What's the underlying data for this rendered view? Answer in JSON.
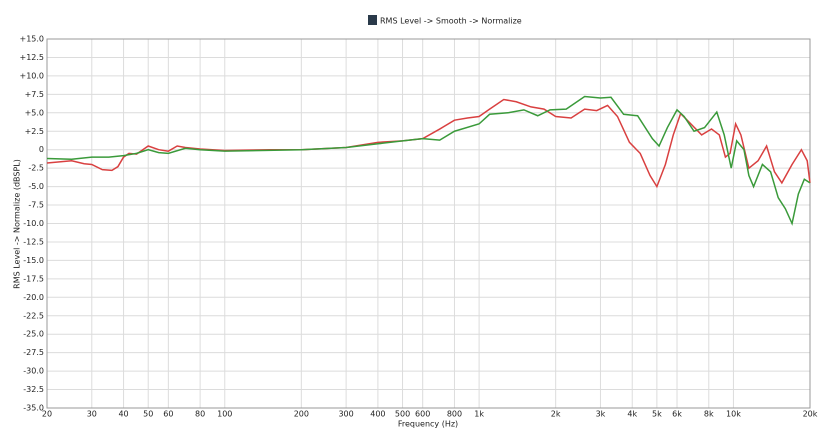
{
  "chart_data": {
    "type": "line",
    "title": "RMS Level -> Smooth -> Normalize",
    "x_label": "Frequency (Hz)",
    "y_label": "RMS Level -> Normalize (dBSPL)",
    "xscale": "log",
    "grid": true,
    "xlim": [
      20,
      20000
    ],
    "ylim": [
      -35,
      15
    ],
    "xticks": [
      20,
      30,
      40,
      50,
      60,
      80,
      100,
      200,
      300,
      400,
      500,
      600,
      800,
      {
        "value": 1000,
        "label": "1k"
      },
      {
        "value": 2000,
        "label": "2k"
      },
      {
        "value": 3000,
        "label": "3k"
      },
      {
        "value": 4000,
        "label": "4k"
      },
      {
        "value": 5000,
        "label": "5k"
      },
      {
        "value": 6000,
        "label": "6k"
      },
      {
        "value": 8000,
        "label": "8k"
      },
      {
        "value": 10000,
        "label": "10k"
      },
      {
        "value": 20000,
        "label": "20k"
      }
    ],
    "yticks": [
      {
        "value": 15,
        "label": "+15.0"
      },
      {
        "value": 12.5,
        "label": "+12.5"
      },
      {
        "value": 10,
        "label": "+10.0"
      },
      {
        "value": 7.5,
        "label": "+7.5"
      },
      {
        "value": 5,
        "label": "+5.0"
      },
      {
        "value": 2.5,
        "label": "+2.5"
      },
      0,
      {
        "value": -2.5,
        "label": "-2.5"
      },
      {
        "value": -5,
        "label": "-5.0"
      },
      {
        "value": -7.5,
        "label": "-7.5"
      },
      {
        "value": -10,
        "label": "-10.0"
      },
      {
        "value": -12.5,
        "label": "-12.5"
      },
      {
        "value": -15,
        "label": "-15.0"
      },
      {
        "value": -17.5,
        "label": "-17.5"
      },
      {
        "value": -20,
        "label": "-20.0"
      },
      {
        "value": -22.5,
        "label": "-22.5"
      },
      {
        "value": -25,
        "label": "-25.0"
      },
      {
        "value": -27.5,
        "label": "-27.5"
      },
      {
        "value": -30,
        "label": "-30.0"
      },
      {
        "value": -32.5,
        "label": "-32.5"
      },
      {
        "value": -35,
        "label": "-35.0"
      }
    ],
    "series": [
      {
        "color": "#d94040",
        "x": [
          20,
          25,
          28,
          30,
          33,
          36,
          38,
          40,
          42,
          45,
          50,
          55,
          60,
          65,
          70,
          80,
          100,
          150,
          200,
          300,
          400,
          500,
          600,
          700,
          800,
          900,
          1000,
          1100,
          1250,
          1400,
          1600,
          1800,
          2000,
          2300,
          2600,
          2900,
          3200,
          3500,
          3900,
          4300,
          4700,
          5000,
          5400,
          5800,
          6200,
          6800,
          7500,
          8200,
          8800,
          9300,
          9700,
          10200,
          10700,
          11500,
          12500,
          13500,
          14500,
          15500,
          17000,
          18500,
          19500,
          20000
        ],
        "values": [
          -1.8,
          -1.5,
          -1.9,
          -2,
          -2.7,
          -2.8,
          -2.3,
          -1,
          -0.5,
          -0.6,
          0.5,
          0,
          -0.2,
          0.5,
          0.3,
          0.1,
          -0.1,
          0,
          0,
          0.3,
          1,
          1.2,
          1.5,
          2.8,
          4,
          4.3,
          4.5,
          5.5,
          6.8,
          6.5,
          5.8,
          5.5,
          4.5,
          4.3,
          5.5,
          5.3,
          6,
          4.5,
          1,
          -0.5,
          -3.5,
          -5,
          -2,
          2,
          4.9,
          3.5,
          2,
          2.8,
          2,
          -1,
          -0.5,
          3.5,
          2,
          -2.5,
          -1.5,
          0.5,
          -3,
          -4.5,
          -2,
          0,
          -1.5,
          -4.5
        ]
      },
      {
        "color": "#3a9a3a",
        "x": [
          20,
          25,
          30,
          35,
          40,
          45,
          50,
          55,
          60,
          70,
          80,
          100,
          200,
          300,
          400,
          500,
          600,
          700,
          800,
          1000,
          1100,
          1300,
          1500,
          1700,
          1900,
          2200,
          2600,
          3000,
          3300,
          3700,
          4200,
          4800,
          5100,
          5500,
          6000,
          6400,
          7000,
          7700,
          8600,
          9200,
          9800,
          10300,
          11000,
          11500,
          12000,
          13000,
          14000,
          15000,
          16000,
          17000,
          18000,
          19000,
          20000
        ],
        "values": [
          -1.2,
          -1.3,
          -1,
          -1,
          -0.8,
          -0.5,
          0,
          -0.4,
          -0.5,
          0.2,
          0,
          -0.2,
          0,
          0.3,
          0.8,
          1.2,
          1.5,
          1.3,
          2.5,
          3.5,
          4.8,
          5,
          5.4,
          4.6,
          5.4,
          5.5,
          7.2,
          7,
          7.1,
          4.8,
          4.6,
          1.5,
          0.5,
          3,
          5.4,
          4.5,
          2.5,
          3,
          5.1,
          2,
          -2.5,
          1.2,
          0,
          -3.5,
          -5,
          -2,
          -3,
          -6.5,
          -8,
          -10,
          -6,
          -4,
          -4.5
        ]
      }
    ]
  }
}
